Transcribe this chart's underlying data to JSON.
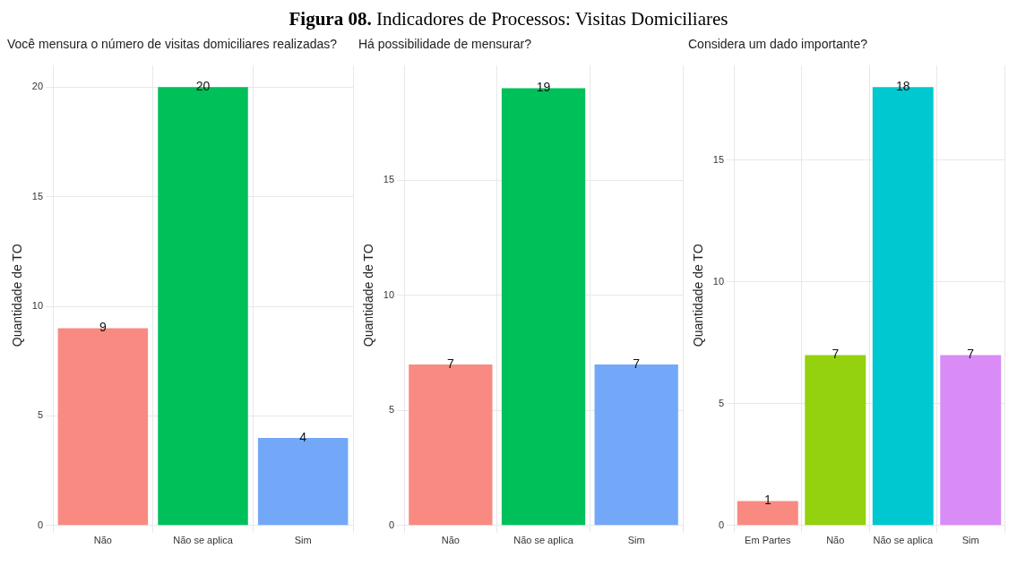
{
  "chart_data": [
    {
      "type": "bar",
      "title": "Figura 08. Indicadores de Processos: Visitas Domiciliares",
      "subtitle": "Você mensura o número de visitas domiciliares realizadas?",
      "ylabel": "Quantidade de TO",
      "categories": [
        "Não",
        "Não se aplica",
        "Sim"
      ],
      "values": [
        9,
        20,
        4
      ],
      "colors": [
        "#f88a82",
        "#00c05a",
        "#73a8f8"
      ],
      "ylim": [
        0,
        21
      ],
      "yticks": [
        0,
        5,
        10,
        15,
        20
      ],
      "grid": true,
      "data_labels": true,
      "legend": false
    },
    {
      "type": "bar",
      "subtitle": "Há possibilidade de mensurar?",
      "ylabel": "Quantidade de TO",
      "categories": [
        "Não",
        "Não se aplica",
        "Sim"
      ],
      "values": [
        7,
        19,
        7
      ],
      "colors": [
        "#f88a82",
        "#00c05a",
        "#73a8f8"
      ],
      "ylim": [
        0,
        20
      ],
      "yticks": [
        0,
        5,
        10,
        15
      ],
      "grid": true,
      "data_labels": true,
      "legend": false
    },
    {
      "type": "bar",
      "subtitle": "Considera um dado importante?",
      "ylabel": "Quantidade de TO",
      "categories": [
        "Em Partes",
        "Não",
        "Não se aplica",
        "Sim"
      ],
      "values": [
        1,
        7,
        18,
        7
      ],
      "colors": [
        "#f88a82",
        "#94d10e",
        "#00c8d0",
        "#d98cf5"
      ],
      "ylim": [
        0,
        18.9
      ],
      "yticks": [
        0,
        5,
        10,
        15
      ],
      "grid": true,
      "data_labels": true,
      "legend": false
    }
  ]
}
